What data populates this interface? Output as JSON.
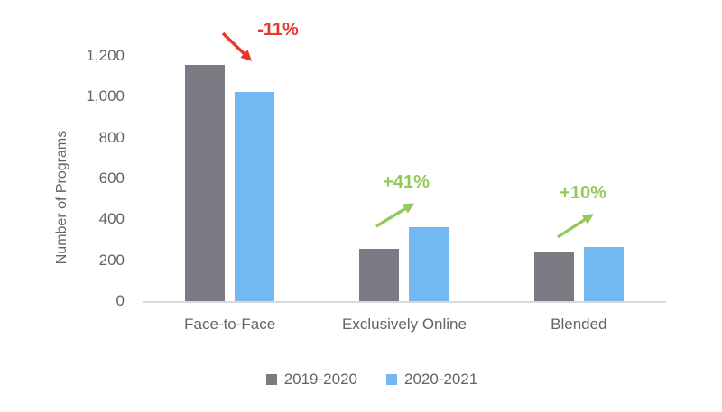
{
  "chart_data": {
    "type": "bar",
    "title": "",
    "categories": [
      "Face-to-Face",
      "Exclusively Online",
      "Blended"
    ],
    "series": [
      {
        "name": "2019-2020",
        "color": "#7a7a83",
        "values": [
          1155,
          255,
          240
        ]
      },
      {
        "name": "2020-2021",
        "color": "#74b8f1",
        "values": [
          1025,
          360,
          265
        ]
      }
    ],
    "annotations": [
      {
        "category": "Face-to-Face",
        "label": "-11%",
        "trend": "decrease",
        "color": "#e8382a"
      },
      {
        "category": "Exclusively Online",
        "label": "+41%",
        "trend": "increase",
        "color": "#93c95a"
      },
      {
        "category": "Blended",
        "label": "+10%",
        "trend": "increase",
        "color": "#93c95a"
      }
    ],
    "xlabel": "",
    "ylabel": "Number of Programs",
    "ylim": [
      0,
      1200
    ],
    "ytick_interval": 200,
    "ytick_labels": [
      "0",
      "200",
      "400",
      "600",
      "800",
      "1,000",
      "1,200"
    ],
    "grid": false,
    "legend_position": "bottom"
  },
  "colors": {
    "series_2019_2020": "#7a7a83",
    "series_2020_2021": "#74b8f1",
    "negative_annotation": "#e8382a",
    "positive_annotation": "#93c95a",
    "axis_line": "#d9d9dd",
    "axis_text": "#63636d",
    "background": "#ffffff"
  }
}
